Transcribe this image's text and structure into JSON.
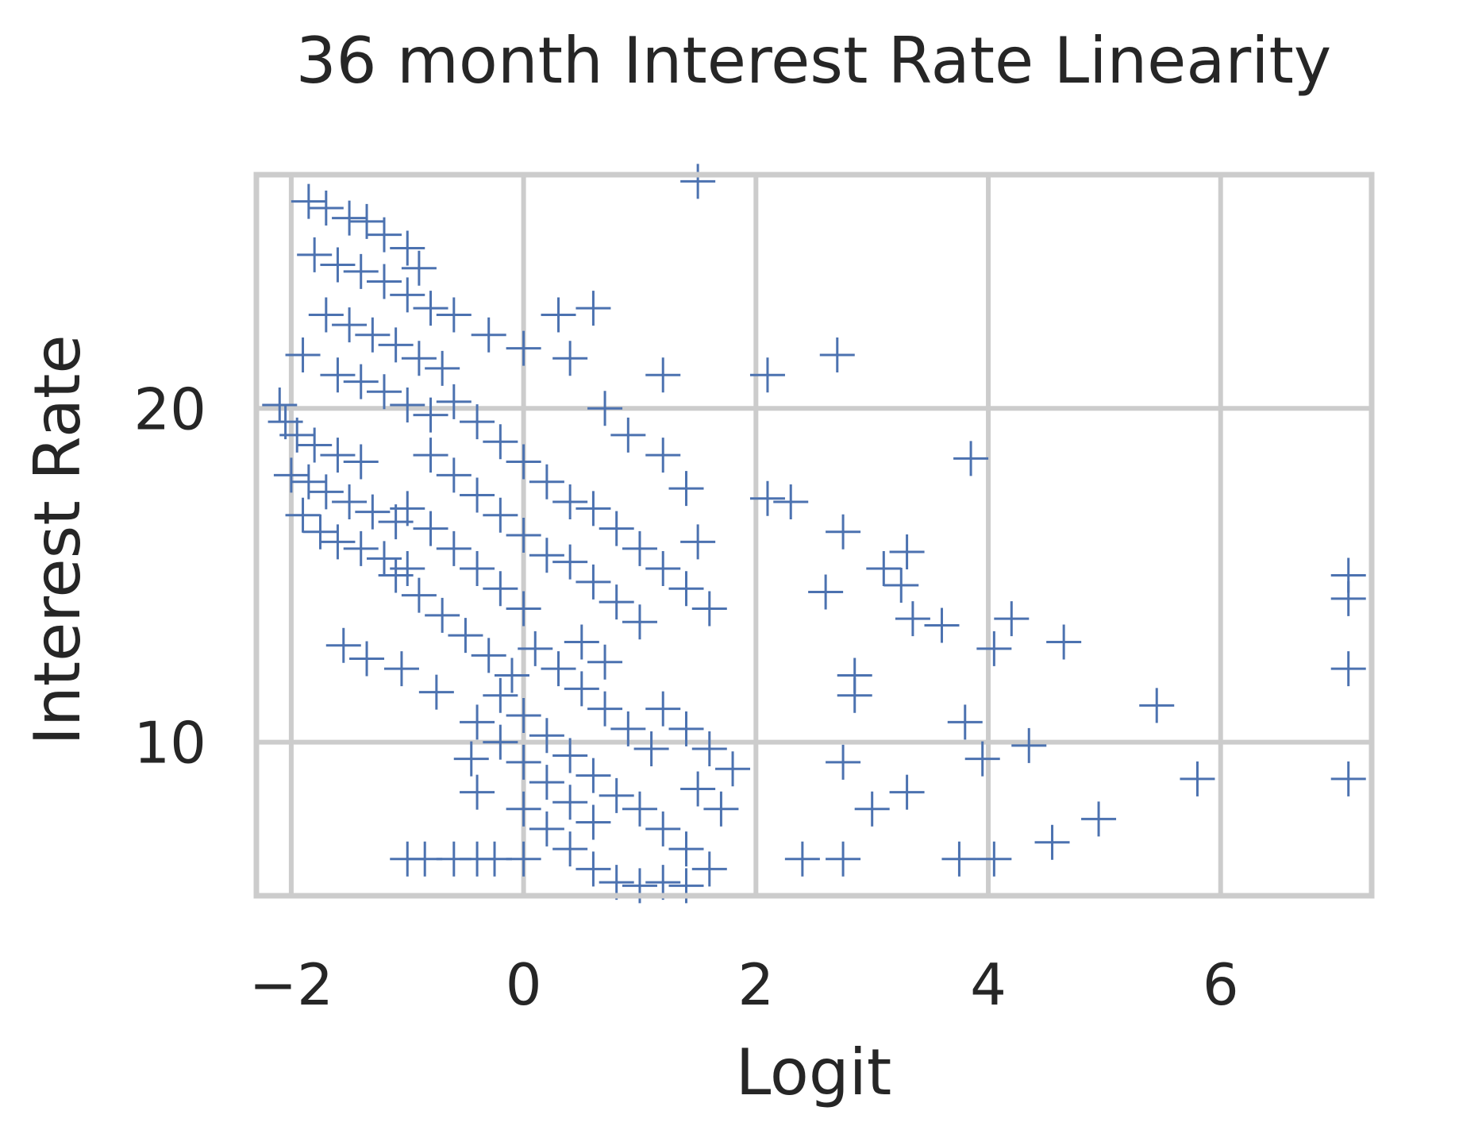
{
  "chart_data": {
    "type": "scatter",
    "title": "36 month Interest Rate Linearity",
    "xlabel": "Logit",
    "ylabel": "Interest Rate",
    "xlim": [
      -2.3,
      7.3
    ],
    "ylim": [
      5.4,
      27.0
    ],
    "xticks": [
      -2,
      0,
      2,
      4,
      6
    ],
    "xtick_labels": [
      "−2",
      "0",
      "2",
      "4",
      "6"
    ],
    "yticks": [
      10,
      20
    ],
    "ytick_labels": [
      "10",
      "20"
    ],
    "grid": true,
    "marker": "+",
    "color": "#4c72b0",
    "grid_color": "#cccccc",
    "series": [
      {
        "points": [
          [
            -1.85,
            26.2
          ],
          [
            -1.7,
            26.0
          ],
          [
            -1.5,
            25.7
          ],
          [
            -1.35,
            25.6
          ],
          [
            -1.2,
            25.2
          ],
          [
            -1.0,
            24.8
          ],
          [
            -1.8,
            24.6
          ],
          [
            -1.6,
            24.3
          ],
          [
            -1.4,
            24.1
          ],
          [
            -1.2,
            23.8
          ],
          [
            -1.0,
            23.4
          ],
          [
            -0.8,
            23.0
          ],
          [
            -1.7,
            22.8
          ],
          [
            -1.5,
            22.5
          ],
          [
            -1.3,
            22.2
          ],
          [
            -1.1,
            21.9
          ],
          [
            -0.9,
            21.5
          ],
          [
            -0.7,
            21.2
          ],
          [
            -1.9,
            21.6
          ],
          [
            -1.6,
            21.0
          ],
          [
            -1.4,
            20.8
          ],
          [
            -1.2,
            20.5
          ],
          [
            -1.0,
            20.1
          ],
          [
            -0.8,
            19.8
          ],
          [
            -2.1,
            20.1
          ],
          [
            -2.05,
            19.6
          ],
          [
            -1.95,
            19.2
          ],
          [
            -1.8,
            18.9
          ],
          [
            -1.6,
            18.6
          ],
          [
            -1.4,
            18.4
          ],
          [
            -2.0,
            18.0
          ],
          [
            -1.85,
            17.8
          ],
          [
            -1.7,
            17.5
          ],
          [
            -1.5,
            17.2
          ],
          [
            -1.3,
            16.9
          ],
          [
            -1.1,
            16.6
          ],
          [
            -1.9,
            16.8
          ],
          [
            -1.75,
            16.3
          ],
          [
            -1.6,
            16.0
          ],
          [
            -1.4,
            15.8
          ],
          [
            -1.2,
            15.5
          ],
          [
            -1.0,
            15.2
          ],
          [
            -0.6,
            20.2
          ],
          [
            -0.4,
            19.6
          ],
          [
            -0.2,
            19.0
          ],
          [
            0.0,
            18.4
          ],
          [
            0.2,
            17.8
          ],
          [
            0.4,
            17.2
          ],
          [
            -0.8,
            18.6
          ],
          [
            -0.6,
            18.0
          ],
          [
            -0.4,
            17.4
          ],
          [
            -0.2,
            16.8
          ],
          [
            0.0,
            16.2
          ],
          [
            0.2,
            15.6
          ],
          [
            -1.0,
            17.0
          ],
          [
            -0.8,
            16.4
          ],
          [
            -0.6,
            15.8
          ],
          [
            -0.4,
            15.2
          ],
          [
            -0.2,
            14.6
          ],
          [
            0.0,
            14.0
          ],
          [
            -1.1,
            15.0
          ],
          [
            -0.9,
            14.4
          ],
          [
            -0.7,
            13.8
          ],
          [
            -0.5,
            13.2
          ],
          [
            -0.3,
            12.6
          ],
          [
            -0.1,
            12.0
          ],
          [
            0.4,
            15.4
          ],
          [
            0.6,
            14.8
          ],
          [
            0.8,
            14.2
          ],
          [
            1.0,
            13.6
          ],
          [
            0.5,
            13.0
          ],
          [
            0.7,
            12.4
          ],
          [
            0.1,
            12.8
          ],
          [
            0.3,
            12.2
          ],
          [
            0.5,
            11.6
          ],
          [
            0.7,
            11.0
          ],
          [
            0.9,
            10.4
          ],
          [
            1.1,
            9.8
          ],
          [
            -0.2,
            11.4
          ],
          [
            0.0,
            10.8
          ],
          [
            0.2,
            10.2
          ],
          [
            0.4,
            9.6
          ],
          [
            0.6,
            9.0
          ],
          [
            0.8,
            8.4
          ],
          [
            -0.4,
            10.6
          ],
          [
            -0.2,
            10.0
          ],
          [
            0.0,
            9.4
          ],
          [
            0.2,
            8.8
          ],
          [
            0.4,
            8.2
          ],
          [
            0.6,
            7.6
          ],
          [
            0.0,
            8.0
          ],
          [
            0.2,
            7.4
          ],
          [
            0.4,
            6.8
          ],
          [
            0.6,
            6.2
          ],
          [
            0.8,
            5.8
          ],
          [
            1.0,
            5.7
          ],
          [
            1.0,
            8.0
          ],
          [
            1.2,
            7.4
          ],
          [
            1.4,
            6.8
          ],
          [
            1.6,
            6.2
          ],
          [
            1.2,
            5.8
          ],
          [
            1.4,
            5.7
          ],
          [
            1.2,
            11.0
          ],
          [
            1.4,
            10.4
          ],
          [
            1.6,
            9.8
          ],
          [
            1.8,
            9.2
          ],
          [
            1.5,
            8.6
          ],
          [
            1.7,
            8.0
          ],
          [
            0.6,
            17.0
          ],
          [
            0.8,
            16.4
          ],
          [
            1.0,
            15.8
          ],
          [
            1.2,
            15.2
          ],
          [
            1.4,
            14.6
          ],
          [
            1.6,
            14.0
          ],
          [
            0.4,
            21.5
          ],
          [
            0.7,
            20.0
          ],
          [
            0.9,
            19.2
          ],
          [
            1.2,
            18.6
          ],
          [
            1.4,
            17.6
          ],
          [
            1.5,
            16.0
          ],
          [
            -0.6,
            22.8
          ],
          [
            -0.3,
            22.2
          ],
          [
            0.0,
            21.8
          ],
          [
            0.3,
            22.8
          ],
          [
            0.6,
            23.0
          ],
          [
            -0.9,
            24.2
          ],
          [
            -1.55,
            12.9
          ],
          [
            -1.35,
            12.5
          ],
          [
            -1.05,
            12.2
          ],
          [
            -0.75,
            11.5
          ],
          [
            -0.45,
            9.5
          ],
          [
            -0.4,
            8.5
          ],
          [
            -1.0,
            6.5
          ],
          [
            -0.85,
            6.5
          ],
          [
            -0.6,
            6.5
          ],
          [
            -0.4,
            6.5
          ],
          [
            -0.25,
            6.5
          ],
          [
            0.0,
            6.5
          ],
          [
            1.5,
            26.8
          ],
          [
            2.7,
            21.6
          ],
          [
            2.1,
            21.0
          ],
          [
            1.2,
            21.0
          ],
          [
            3.85,
            18.5
          ],
          [
            2.1,
            17.3
          ],
          [
            2.3,
            17.2
          ],
          [
            2.75,
            16.3
          ],
          [
            3.3,
            15.7
          ],
          [
            3.1,
            15.2
          ],
          [
            2.6,
            14.5
          ],
          [
            3.25,
            14.7
          ],
          [
            3.35,
            13.7
          ],
          [
            3.6,
            13.5
          ],
          [
            4.2,
            13.7
          ],
          [
            4.65,
            13.0
          ],
          [
            4.05,
            12.8
          ],
          [
            2.85,
            12.0
          ],
          [
            2.85,
            11.4
          ],
          [
            3.8,
            10.6
          ],
          [
            5.45,
            11.1
          ],
          [
            4.35,
            9.9
          ],
          [
            3.95,
            9.5
          ],
          [
            2.75,
            9.4
          ],
          [
            3.3,
            8.5
          ],
          [
            3.0,
            8.0
          ],
          [
            4.95,
            7.7
          ],
          [
            4.55,
            7.0
          ],
          [
            3.75,
            6.5
          ],
          [
            4.05,
            6.5
          ],
          [
            2.75,
            6.5
          ],
          [
            2.4,
            6.5
          ],
          [
            7.1,
            15.0
          ],
          [
            7.1,
            14.3
          ],
          [
            7.1,
            12.2
          ],
          [
            7.1,
            8.9
          ],
          [
            5.8,
            8.9
          ]
        ]
      }
    ]
  }
}
